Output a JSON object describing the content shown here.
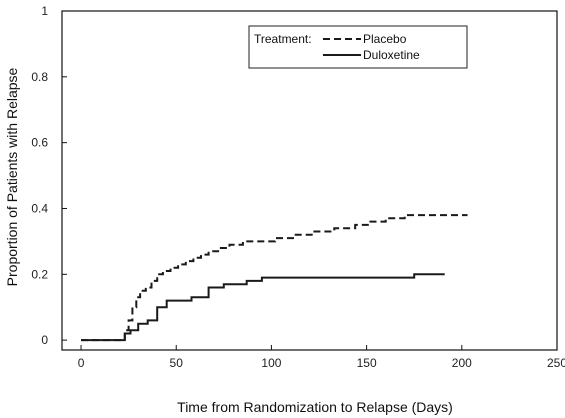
{
  "chart_data": {
    "type": "line",
    "step": true,
    "title": "",
    "xlabel": "Time from Randomization to Relapse (Days)",
    "ylabel": "Proportion of Patients with Relapse",
    "xlim": [
      -10,
      250
    ],
    "ylim": [
      -0.03,
      1.0
    ],
    "x_ticks": [
      0,
      50,
      100,
      150,
      200,
      250
    ],
    "y_ticks": [
      0,
      0.2,
      0.4,
      0.6,
      0.8,
      1
    ],
    "y_tick_labels": [
      "0",
      "0.2",
      "0.4",
      "0.6",
      "0.8",
      "1"
    ],
    "grid": false,
    "legend": {
      "title": "Treatment:",
      "placement": "top-right",
      "entries": [
        "Placebo",
        "Duloxetine"
      ]
    },
    "series": [
      {
        "name": "Placebo",
        "line_style": "dashed",
        "color": "#1a1a1a",
        "x": [
          0,
          21,
          23,
          25,
          27,
          29,
          31,
          34,
          37,
          40,
          43,
          47,
          51,
          55,
          59,
          63,
          67,
          72,
          78,
          85,
          93,
          102,
          112,
          122,
          133,
          144,
          152,
          160,
          170,
          180,
          203
        ],
        "y": [
          0,
          0,
          0.03,
          0.06,
          0.1,
          0.13,
          0.15,
          0.16,
          0.18,
          0.2,
          0.21,
          0.22,
          0.23,
          0.24,
          0.25,
          0.26,
          0.27,
          0.28,
          0.29,
          0.3,
          0.3,
          0.31,
          0.32,
          0.33,
          0.34,
          0.35,
          0.36,
          0.37,
          0.38,
          0.38,
          0.38
        ]
      },
      {
        "name": "Duloxetine",
        "line_style": "solid",
        "color": "#1a1a1a",
        "x": [
          0,
          21,
          23,
          26,
          30,
          35,
          40,
          45,
          50,
          58,
          67,
          75,
          87,
          95,
          175,
          191
        ],
        "y": [
          0,
          0,
          0.02,
          0.03,
          0.05,
          0.06,
          0.1,
          0.12,
          0.12,
          0.13,
          0.16,
          0.17,
          0.18,
          0.19,
          0.2,
          0.2
        ]
      }
    ]
  }
}
